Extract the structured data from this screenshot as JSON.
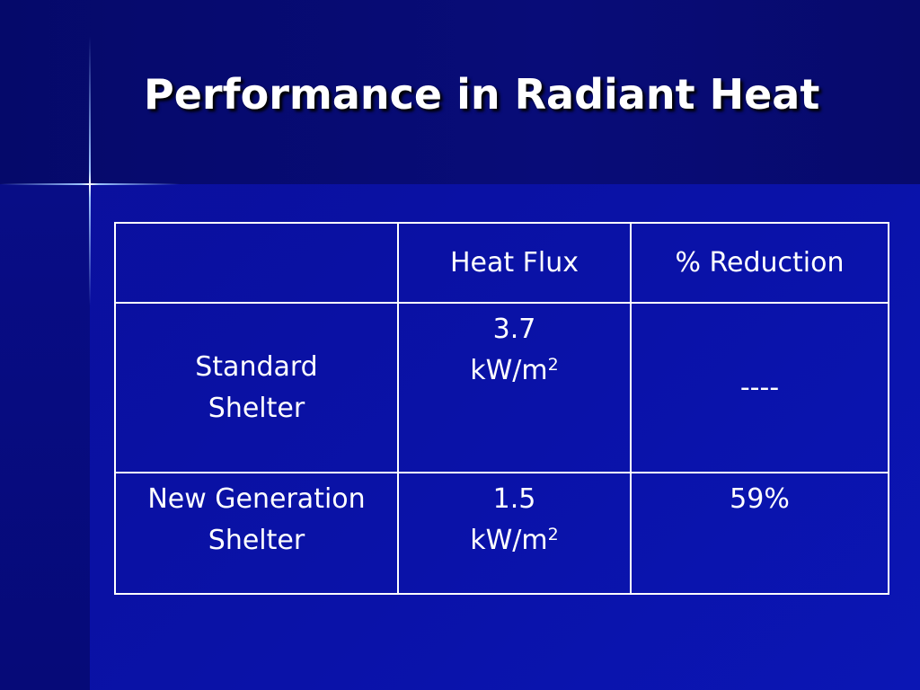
{
  "title": "Performance in Radiant Heat",
  "table": {
    "header": [
      "Heat Flux",
      "% Reduction"
    ],
    "rows": [
      {
        "label": [
          "Standard",
          "Shelter"
        ],
        "flux": {
          "value": "3.7",
          "unit": "kW/m",
          "sup": "2"
        },
        "reduction": "----"
      },
      {
        "label": [
          "New Generation",
          "Shelter"
        ],
        "flux": {
          "value": "1.5",
          "unit": "kW/m",
          "sup": "2"
        },
        "reduction": "59%"
      }
    ]
  }
}
